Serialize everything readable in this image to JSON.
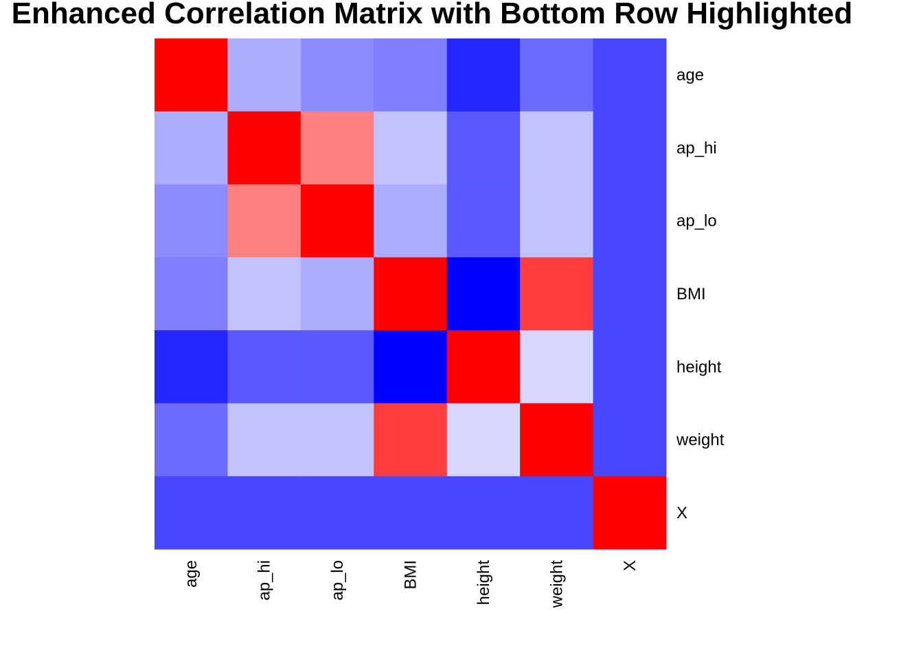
{
  "chart_data": {
    "type": "heatmap",
    "title": "Enhanced Correlation Matrix with Bottom Row Highlighted",
    "row_labels": [
      "age",
      "ap_hi",
      "ap_lo",
      "BMI",
      "height",
      "weight",
      "X"
    ],
    "column_labels": [
      "age",
      "ap_hi",
      "ap_lo",
      "BMI",
      "height",
      "weight",
      "X"
    ],
    "values": [
      [
        1.0,
        -0.32,
        -0.45,
        -0.5,
        -0.85,
        -0.58,
        -0.72
      ],
      [
        -0.32,
        1.0,
        0.5,
        -0.24,
        -0.65,
        -0.24,
        -0.72
      ],
      [
        -0.45,
        0.5,
        1.0,
        -0.32,
        -0.65,
        -0.24,
        -0.72
      ],
      [
        -0.5,
        -0.24,
        -0.32,
        1.0,
        -1.0,
        0.76,
        -0.72
      ],
      [
        -0.85,
        -0.65,
        -0.65,
        -1.0,
        1.0,
        -0.16,
        -0.72
      ],
      [
        -0.58,
        -0.24,
        -0.24,
        0.76,
        -0.16,
        1.0,
        -0.72
      ],
      [
        -0.72,
        -0.72,
        -0.72,
        -0.72,
        -0.72,
        -0.72,
        1.0
      ]
    ],
    "color_scale": {
      "low": "#0000FF",
      "mid": "#FFFFFF",
      "high": "#FF0000",
      "range": [
        -1,
        1
      ]
    },
    "legend": false
  }
}
